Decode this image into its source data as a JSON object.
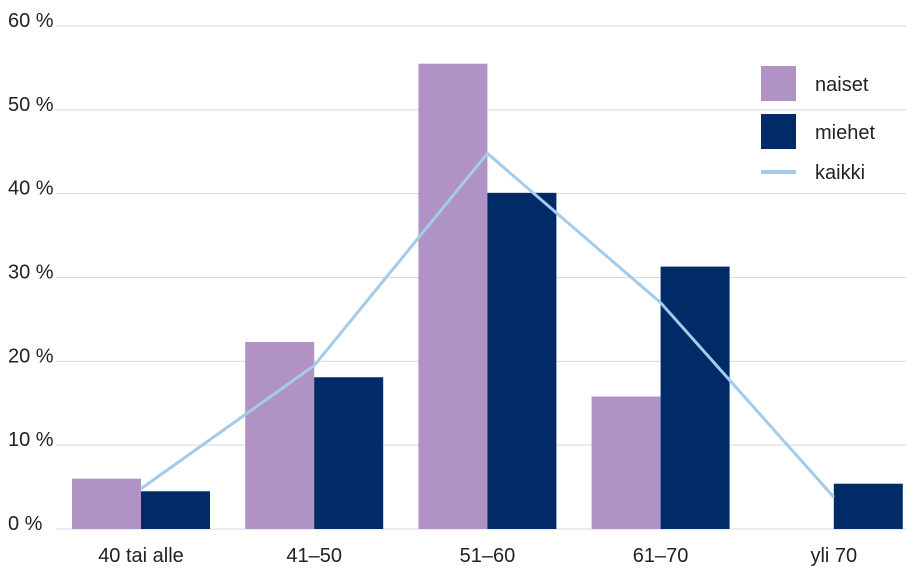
{
  "chart_data": {
    "type": "bar",
    "title": "",
    "xlabel": "",
    "ylabel": "",
    "categories": [
      "40 tai alle",
      "41–50",
      "51–60",
      "61–70",
      "yli 70"
    ],
    "y_ticks": [
      "0 %",
      "10 %",
      "20 %",
      "30 %",
      "40 %",
      "50 %",
      "60 %"
    ],
    "ylim": [
      0,
      60
    ],
    "grid": "horizontal",
    "legend_position": "top-right",
    "series": [
      {
        "name": "naiset",
        "kind": "bar",
        "color": "#b092c4",
        "values": [
          6,
          22.3,
          55.5,
          15.8,
          0
        ]
      },
      {
        "name": "miehet",
        "kind": "bar",
        "color": "#002b66",
        "values": [
          4.5,
          18.1,
          40.1,
          31.3,
          5.4
        ]
      },
      {
        "name": "kaikki",
        "kind": "line",
        "color": "#a3cbea",
        "values": [
          4.8,
          19.5,
          44.8,
          27,
          3.8
        ]
      }
    ]
  }
}
